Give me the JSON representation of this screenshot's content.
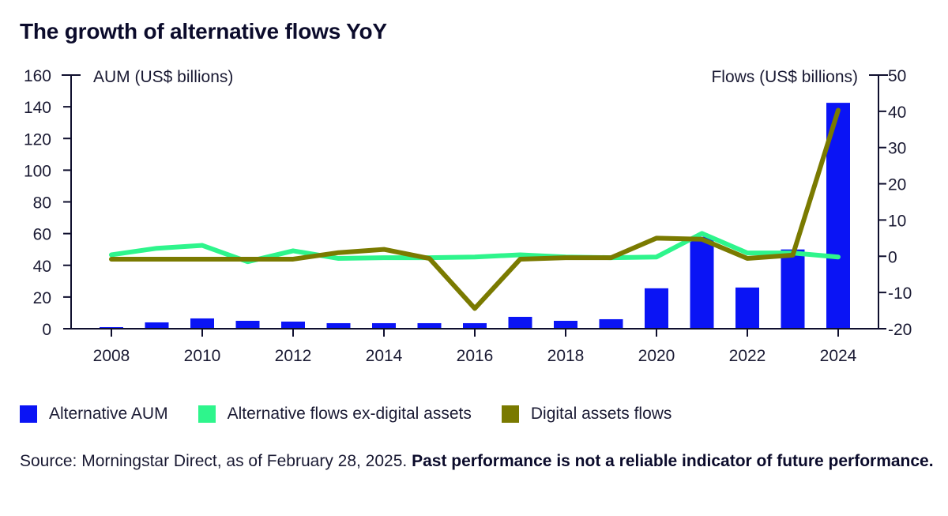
{
  "title": "The growth of alternative flows YoY",
  "chart_data": {
    "type": "bar+line",
    "title": "The growth of alternative flows YoY",
    "categories": [
      "2008",
      "2009",
      "2010",
      "2011",
      "2012",
      "2013",
      "2014",
      "2015",
      "2016",
      "2017",
      "2018",
      "2019",
      "2020",
      "2021",
      "2022",
      "2023",
      "2024"
    ],
    "x_tick_labels": [
      "2008",
      "2010",
      "2012",
      "2014",
      "2016",
      "2018",
      "2020",
      "2022",
      "2024"
    ],
    "left_axis": {
      "label": "AUM (US$ billions)",
      "range": [
        0,
        160
      ],
      "ticks": [
        0,
        20,
        40,
        60,
        80,
        100,
        120,
        140,
        160
      ]
    },
    "right_axis": {
      "label": "Flows (US$ billions)",
      "range": [
        -20,
        50
      ],
      "ticks": [
        -20,
        -10,
        0,
        10,
        20,
        30,
        40,
        50
      ]
    },
    "grid": false,
    "legend_position": "bottom-left",
    "series": [
      {
        "name": "Alternative AUM",
        "type": "bar",
        "axis": "left",
        "color": "#0a14f5",
        "values": [
          1,
          4,
          6.5,
          5,
          4.5,
          3.5,
          3.5,
          3.5,
          3.5,
          7.5,
          5,
          6,
          25.5,
          58,
          26,
          50,
          142.5
        ]
      },
      {
        "name": "Alternative flows ex-digital assets",
        "type": "line",
        "axis": "right",
        "color": "#2ef58c",
        "values": [
          0.4,
          2.2,
          3.0,
          -1.5,
          1.5,
          -0.6,
          -0.4,
          -0.4,
          -0.2,
          0.4,
          -0.2,
          -0.4,
          -0.2,
          6.3,
          0.9,
          0.9,
          -0.2
        ]
      },
      {
        "name": "Digital assets flows",
        "type": "line",
        "axis": "right",
        "color": "#7a7a00",
        "values": [
          -0.8,
          -0.8,
          -0.8,
          -0.8,
          -0.8,
          1.0,
          1.9,
          -0.6,
          -14.4,
          -0.8,
          -0.4,
          -0.4,
          5.0,
          4.7,
          -0.6,
          0.3,
          40.3
        ]
      }
    ]
  },
  "legend": [
    {
      "label": "Alternative AUM",
      "color": "#0a14f5"
    },
    {
      "label": "Alternative flows ex-digital assets",
      "color": "#2ef58c"
    },
    {
      "label": "Digital assets flows",
      "color": "#7a7a00"
    }
  ],
  "source": {
    "text": "Source: Morningstar Direct, as of February 28, 2025. ",
    "bold": "Past performance is not a reliable indicator of future performance."
  }
}
